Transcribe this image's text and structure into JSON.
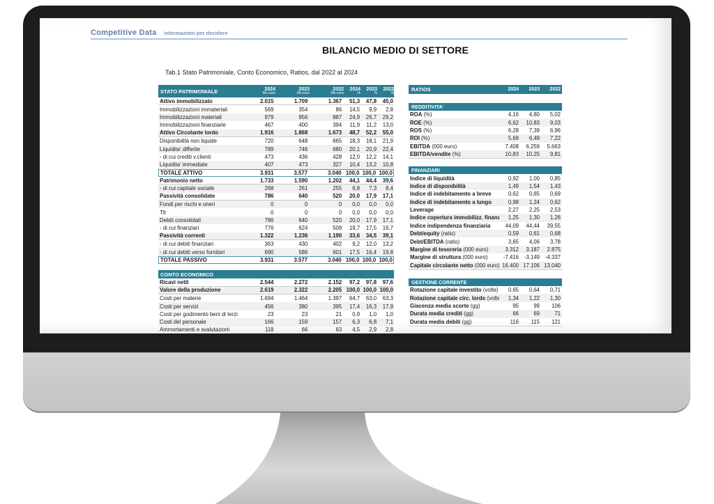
{
  "logo": {
    "brand": "Competitive Data",
    "tagline": "informazioni per decidere"
  },
  "title": "BILANCIO MEDIO DI SETTORE",
  "subtitle": "Tab.1 Stato Patrimoniale, Conto Economico, Ratios, dal 2022 al 2024",
  "colors": {
    "header_teal": "#2b7d92",
    "logo_blue": "#5b7db1",
    "rule_blue": "#aac4de",
    "stripe_gray": "#f0f0f0",
    "total_box_border": "#4e94aa"
  },
  "balance_table": {
    "title": "STATO PATRIMONIALE",
    "col_headers": [
      {
        "year": "2024",
        "unit": "Mn euro"
      },
      {
        "year": "2023",
        "unit": "Mn euro"
      },
      {
        "year": "2022",
        "unit": "Mn euro"
      },
      {
        "year": "2024",
        "unit": "%"
      },
      {
        "year": "2023",
        "unit": "%"
      },
      {
        "year": "2022",
        "unit": "%"
      }
    ],
    "rows": [
      {
        "label": "Attivo immobilizzato",
        "values": [
          "2.015",
          "1.709",
          "1.367",
          "51,3",
          "47,8",
          "45,0"
        ],
        "bold": true,
        "shade": false,
        "boxed": false
      },
      {
        "label": "Immobilizzazioni immateriali",
        "values": [
          "569",
          "354",
          "86",
          "14,5",
          "9,9",
          "2,8"
        ],
        "bold": false,
        "shade": false,
        "boxed": false
      },
      {
        "label": "Immobilizzazioni materiali",
        "values": [
          "979",
          "956",
          "887",
          "24,9",
          "26,7",
          "29,2"
        ],
        "bold": false,
        "shade": true,
        "boxed": false
      },
      {
        "label": "Immobilizzazioni finanziarie",
        "values": [
          "467",
          "400",
          "394",
          "11,9",
          "11,2",
          "13,0"
        ],
        "bold": false,
        "shade": false,
        "boxed": false
      },
      {
        "label": "Attivo Circolante  lordo",
        "values": [
          "1.916",
          "1.868",
          "1.673",
          "48,7",
          "52,2",
          "55,0"
        ],
        "bold": true,
        "shade": true,
        "boxed": false
      },
      {
        "label": "Disponibilità non liquide",
        "values": [
          "720",
          "648",
          "665",
          "18,3",
          "18,1",
          "21,9"
        ],
        "bold": false,
        "shade": false,
        "boxed": false
      },
      {
        "label": "Liquidita'  differite",
        "values": [
          "789",
          "746",
          "680",
          "20,1",
          "20,9",
          "22,4"
        ],
        "bold": false,
        "shade": true,
        "boxed": false
      },
      {
        "label": "- di cui crediti v.clienti",
        "values": [
          "473",
          "436",
          "428",
          "12,0",
          "12,2",
          "14,1"
        ],
        "bold": false,
        "shade": false,
        "boxed": false
      },
      {
        "label": "Liquidita'  immediate",
        "values": [
          "407",
          "473",
          "327",
          "10,4",
          "13,2",
          "10,8"
        ],
        "bold": false,
        "shade": true,
        "boxed": false
      },
      {
        "label": "TOTALE ATTIVO",
        "values": [
          "3.931",
          "3.577",
          "3.040",
          "100,0",
          "100,0",
          "100,0"
        ],
        "bold": true,
        "shade": false,
        "boxed": true
      },
      {
        "label": "Patrimonio netto",
        "values": [
          "1.733",
          "1.590",
          "1.202",
          "44,1",
          "44,4",
          "39,6"
        ],
        "bold": true,
        "shade": false,
        "boxed": false
      },
      {
        "label": "- di cui capitale sociale",
        "values": [
          "268",
          "261",
          "255",
          "6,8",
          "7,3",
          "8,4"
        ],
        "bold": false,
        "shade": true,
        "boxed": false
      },
      {
        "label": "Passività consolidate",
        "values": [
          "786",
          "640",
          "520",
          "20,0",
          "17,9",
          "17,1"
        ],
        "bold": true,
        "shade": false,
        "boxed": false
      },
      {
        "label": "Fondi per rischi e oneri",
        "values": [
          "0",
          "0",
          "0",
          "0,0",
          "0,0",
          "0,0"
        ],
        "bold": false,
        "shade": true,
        "boxed": false
      },
      {
        "label": "Tfr",
        "values": [
          "0",
          "0",
          "0",
          "0,0",
          "0,0",
          "0,0"
        ],
        "bold": false,
        "shade": false,
        "boxed": false
      },
      {
        "label": "Debiti consolidati",
        "values": [
          "786",
          "640",
          "520",
          "20,0",
          "17,9",
          "17,1"
        ],
        "bold": false,
        "shade": true,
        "boxed": false
      },
      {
        "label": "- di cui finanziari",
        "values": [
          "776",
          "624",
          "509",
          "19,7",
          "17,5",
          "16,7"
        ],
        "bold": false,
        "shade": false,
        "boxed": false
      },
      {
        "label": "Passività correnti",
        "values": [
          "1.322",
          "1.236",
          "1.190",
          "33,6",
          "34,5",
          "39,1"
        ],
        "bold": true,
        "shade": true,
        "boxed": false
      },
      {
        "label": "- di cui debiti finanziari",
        "values": [
          "363",
          "430",
          "402",
          "9,2",
          "12,0",
          "13,2"
        ],
        "bold": false,
        "shade": false,
        "boxed": false
      },
      {
        "label": "- di cui debiti verso fornitori",
        "values": [
          "690",
          "586",
          "601",
          "17,5",
          "16,4",
          "19,8"
        ],
        "bold": false,
        "shade": true,
        "boxed": false
      },
      {
        "label": "TOTALE PASSIVO",
        "values": [
          "3.931",
          "3.577",
          "3.040",
          "100,0",
          "100,0",
          "100,0"
        ],
        "bold": true,
        "shade": false,
        "boxed": true
      }
    ]
  },
  "income_table": {
    "title": "CONTO ECONOMICO",
    "rows": [
      {
        "label": "Ricavi netti",
        "values": [
          "2.544",
          "2.272",
          "2.152",
          "97,2",
          "97,8",
          "97,6"
        ],
        "bold": true,
        "shade": false,
        "boxed": false
      },
      {
        "label": "Valore della produzione",
        "values": [
          "2.619",
          "2.322",
          "2.205",
          "100,0",
          "100,0",
          "100,0"
        ],
        "bold": true,
        "shade": true,
        "boxed": false
      },
      {
        "label": "Costi per materie",
        "values": [
          "1.694",
          "1.464",
          "1.397",
          "64,7",
          "63,0",
          "63,3"
        ],
        "bold": false,
        "shade": false,
        "boxed": false
      },
      {
        "label": "Costi per servizi",
        "values": [
          "456",
          "380",
          "395",
          "17,4",
          "16,3",
          "17,9"
        ],
        "bold": false,
        "shade": true,
        "boxed": false
      },
      {
        "label": "Costi per godimento beni di terzi",
        "values": [
          "23",
          "23",
          "21",
          "0,9",
          "1,0",
          "1,0"
        ],
        "bold": false,
        "shade": false,
        "boxed": false
      },
      {
        "label": "Costi del personale",
        "values": [
          "166",
          "159",
          "157",
          "6,3",
          "6,8",
          "7,1"
        ],
        "bold": false,
        "shade": true,
        "boxed": false
      },
      {
        "label": "Ammortamenti e svalutazioni",
        "values": [
          "118",
          "66",
          "63",
          "4,5",
          "2,9",
          "2,8"
        ],
        "bold": false,
        "shade": false,
        "boxed": false
      }
    ]
  },
  "ratios": {
    "title": "RATIOS",
    "years": [
      "2024",
      "2023",
      "2022"
    ],
    "sections": [
      {
        "title": "REDDITIVITA'",
        "rows": [
          {
            "label": "ROA",
            "unit": "(%)",
            "values": [
              "4,16",
              "4,80",
              "5,02"
            ],
            "shade": false
          },
          {
            "label": "ROE",
            "unit": "(%)",
            "values": [
              "6,62",
              "10,83",
              "9,03"
            ],
            "shade": true
          },
          {
            "label": "ROS",
            "unit": "(%)",
            "values": [
              "6,28",
              "7,39",
              "6,96"
            ],
            "shade": false
          },
          {
            "label": "ROI",
            "unit": "(%)",
            "values": [
              "5,69",
              "6,49",
              "7,22"
            ],
            "shade": true
          },
          {
            "label": "EBITDA",
            "unit": "(000 euro)",
            "values": [
              "7.408",
              "6.259",
              "5.663"
            ],
            "shade": false
          },
          {
            "label": "EBITDA/vendite",
            "unit": "(%)",
            "values": [
              "10,83",
              "10,25",
              "9,81"
            ],
            "shade": true
          }
        ]
      },
      {
        "title": "FINANZIARI",
        "rows": [
          {
            "label": "Indice di liquidità",
            "unit": "",
            "values": [
              "0,92",
              "1,00",
              "0,85"
            ],
            "shade": false
          },
          {
            "label": "Indice di disponibilità",
            "unit": "",
            "values": [
              "1,49",
              "1,54",
              "1,43"
            ],
            "shade": true
          },
          {
            "label": "Indice di indebitamento a breve",
            "unit": "",
            "values": [
              "0,62",
              "0,65",
              "0,69"
            ],
            "shade": false
          },
          {
            "label": "Indice di indebitamento a lungo",
            "unit": "",
            "values": [
              "0,98",
              "1,24",
              "0,62"
            ],
            "shade": true
          },
          {
            "label": "Leverage",
            "unit": "",
            "values": [
              "2,27",
              "2,25",
              "2,53"
            ],
            "shade": false
          },
          {
            "label": "Indice copertura immobilizz. finanziarie",
            "unit": "",
            "values": [
              "1,25",
              "1,30",
              "1,26"
            ],
            "shade": true
          },
          {
            "label": "Indice indipendenza finanziaria",
            "unit": "",
            "values": [
              "44,09",
              "44,44",
              "39,55"
            ],
            "shade": false
          },
          {
            "label": "Debt/equity",
            "unit": "(ratio)",
            "values": [
              "0,59",
              "0,61",
              "0,68"
            ],
            "shade": true
          },
          {
            "label": "Debt/EBITDA",
            "unit": "(ratio)",
            "values": [
              "3,65",
              "4,06",
              "3,78"
            ],
            "shade": false
          },
          {
            "label": "Margine di tesoreria",
            "unit": "(000 euro)",
            "values": [
              "3.312",
              "3.187",
              "2.875"
            ],
            "shade": true
          },
          {
            "label": "Margine di struttura",
            "unit": "(000 euro)",
            "values": [
              "-7.416",
              "-3.149",
              "-4.337"
            ],
            "shade": false
          },
          {
            "label": "Capitale circolante netto",
            "unit": "(000 euro)",
            "values": [
              "16.400",
              "17.106",
              "13.040"
            ],
            "shade": true
          }
        ]
      },
      {
        "title": "GESTIONE CORRENTE",
        "rows": [
          {
            "label": "Rotazione capitale investito",
            "unit": "(volte)",
            "values": [
              "0,65",
              "0,64",
              "0,71"
            ],
            "shade": false
          },
          {
            "label": "Rotazione capitale circ. lordo",
            "unit": "(volte)",
            "values": [
              "1,34",
              "1,22",
              "1,30"
            ],
            "shade": true
          },
          {
            "label": "Giacenza media scorte",
            "unit": "(gg)",
            "values": [
              "95",
              "99",
              "106"
            ],
            "shade": false
          },
          {
            "label": "Durata media crediti",
            "unit": "(gg)",
            "values": [
              "66",
              "69",
              "71"
            ],
            "shade": true
          },
          {
            "label": "Durata media debiti",
            "unit": "(gg)",
            "values": [
              "116",
              "115",
              "121"
            ],
            "shade": false
          }
        ]
      }
    ]
  }
}
